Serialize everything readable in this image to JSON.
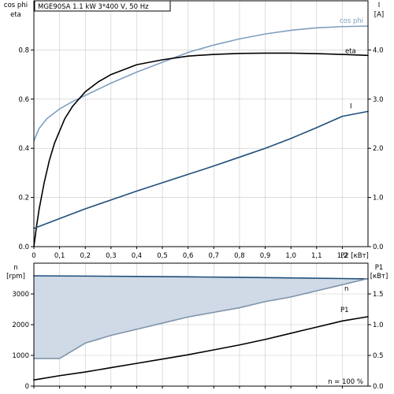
{
  "header": {
    "title": "MGE90SA   1.1 kW   3*400 V, 50 Hz"
  },
  "chart_data": [
    {
      "type": "line",
      "left_label_lines": [
        "cos phi",
        "eta"
      ],
      "right_label_lines": [
        "I",
        "[A]"
      ],
      "xlabel": "P2 [кВт]",
      "xlim": [
        0,
        1.3
      ],
      "ylim_left": [
        0,
        1.0
      ],
      "ylim_right": [
        0,
        5.0
      ],
      "x_ticks": [
        0,
        0.1,
        0.2,
        0.3,
        0.4,
        0.5,
        0.6,
        0.7,
        0.8,
        0.9,
        1.0,
        1.1,
        1.2
      ],
      "x_tick_labels": [
        "0",
        "0,1",
        "0,2",
        "0,3",
        "0,4",
        "0,5",
        "0,6",
        "0,7",
        "0,8",
        "0,9",
        "1,0",
        "1,1",
        "1,2"
      ],
      "y_left_ticks": [
        0,
        0.2,
        0.4,
        0.6,
        0.8
      ],
      "y_left_tick_labels": [
        "0.0",
        "0.2",
        "0.4",
        "0.6",
        "0.8"
      ],
      "y_right_ticks": [
        0,
        1,
        2,
        3,
        4
      ],
      "y_right_tick_labels": [
        "0.0",
        "1.0",
        "2.0",
        "3.0",
        "4.0"
      ],
      "grid": true,
      "series": [
        {
          "name": "cos phi",
          "axis": "left",
          "color": "#7f9fc0",
          "x": [
            0.0,
            0.02,
            0.05,
            0.1,
            0.15,
            0.2,
            0.3,
            0.4,
            0.5,
            0.6,
            0.7,
            0.8,
            0.9,
            1.0,
            1.1,
            1.2,
            1.3
          ],
          "y": [
            0.43,
            0.48,
            0.52,
            0.56,
            0.59,
            0.615,
            0.665,
            0.71,
            0.75,
            0.79,
            0.82,
            0.845,
            0.865,
            0.88,
            0.89,
            0.895,
            0.897
          ]
        },
        {
          "name": "eta",
          "axis": "left",
          "color": "#000000",
          "x": [
            0.0,
            0.01,
            0.02,
            0.04,
            0.06,
            0.08,
            0.1,
            0.12,
            0.15,
            0.2,
            0.25,
            0.3,
            0.4,
            0.5,
            0.6,
            0.7,
            0.8,
            0.9,
            1.0,
            1.1,
            1.2,
            1.3
          ],
          "y": [
            0.0,
            0.08,
            0.15,
            0.26,
            0.35,
            0.42,
            0.47,
            0.52,
            0.57,
            0.63,
            0.67,
            0.7,
            0.74,
            0.76,
            0.775,
            0.782,
            0.786,
            0.787,
            0.787,
            0.785,
            0.782,
            0.778
          ]
        },
        {
          "name": "I",
          "axis": "right",
          "color": "#1f4e7a",
          "x": [
            0.0,
            0.05,
            0.1,
            0.2,
            0.3,
            0.4,
            0.5,
            0.6,
            0.7,
            0.8,
            0.9,
            1.0,
            1.1,
            1.2,
            1.3
          ],
          "y": [
            0.37,
            0.47,
            0.57,
            0.77,
            0.95,
            1.13,
            1.3,
            1.47,
            1.64,
            1.82,
            2.0,
            2.2,
            2.42,
            2.65,
            2.75
          ]
        }
      ]
    },
    {
      "type": "line",
      "left_label_lines": [
        "n",
        "[rpm]"
      ],
      "right_label_lines": [
        "P1",
        "[кВт]"
      ],
      "xlim": [
        0,
        1.3
      ],
      "ylim_left": [
        0,
        4000
      ],
      "ylim_right": [
        0,
        2.0
      ],
      "y_left_ticks": [
        0,
        1000,
        2000,
        3000
      ],
      "y_left_tick_labels": [
        "0",
        "1000",
        "2000",
        "3000"
      ],
      "y_right_ticks": [
        0,
        0.5,
        1.0,
        1.5
      ],
      "y_right_tick_labels": [
        "0.0",
        "0.5",
        "1.0",
        "1.5"
      ],
      "grid": true,
      "annotation": "n = 100 %",
      "fill_color": "#cfdae6",
      "series": [
        {
          "name": "n",
          "axis": "left",
          "color": "#1f4e7a",
          "x": [
            0.0,
            0.2,
            0.4,
            0.6,
            0.8,
            1.0,
            1.2,
            1.3
          ],
          "y": [
            3590,
            3580,
            3570,
            3555,
            3540,
            3520,
            3500,
            3490
          ]
        },
        {
          "name": "",
          "axis": "left",
          "color": "#7f93ab",
          "x": [
            0.0,
            0.1,
            0.2,
            0.3,
            0.4,
            0.5,
            0.6,
            0.7,
            0.8,
            0.9,
            1.0,
            1.1,
            1.2,
            1.3
          ],
          "y": [
            900,
            900,
            1400,
            1650,
            1850,
            2050,
            2250,
            2400,
            2550,
            2750,
            2900,
            3100,
            3300,
            3500
          ]
        },
        {
          "name": "P1",
          "axis": "right",
          "color": "#000000",
          "x": [
            0.0,
            0.1,
            0.2,
            0.3,
            0.4,
            0.5,
            0.6,
            0.7,
            0.8,
            0.9,
            1.0,
            1.1,
            1.2,
            1.3
          ],
          "y": [
            0.1,
            0.17,
            0.23,
            0.3,
            0.37,
            0.44,
            0.51,
            0.59,
            0.67,
            0.76,
            0.86,
            0.96,
            1.06,
            1.13
          ]
        }
      ]
    }
  ]
}
